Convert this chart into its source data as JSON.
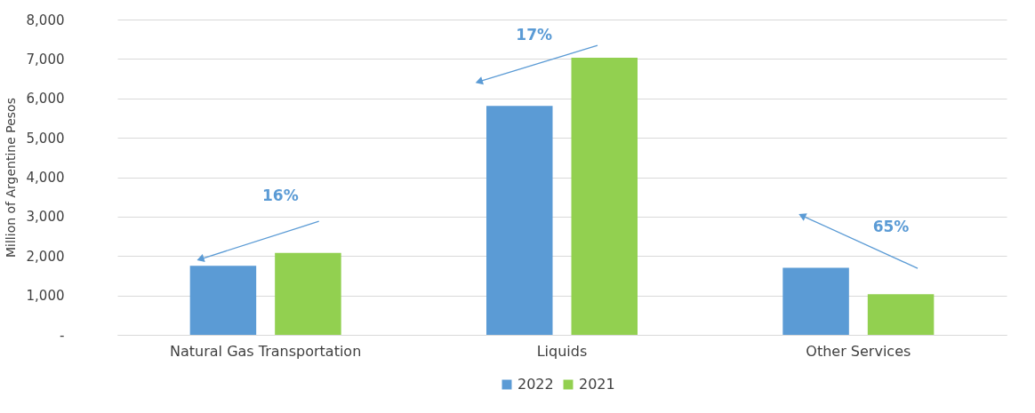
{
  "chart_data": {
    "type": "bar",
    "categories": [
      "Natural Gas Transportation",
      "Liquids",
      "Other Services"
    ],
    "series": [
      {
        "name": "2022",
        "color": "#5b9bd5",
        "values": [
          1750,
          5810,
          1700
        ]
      },
      {
        "name": "2021",
        "color": "#92d050",
        "values": [
          2080,
          7030,
          1030
        ]
      }
    ],
    "ylabel": "Million of Argentine Pesos",
    "ylim": [
      0,
      8000
    ],
    "yticks": [
      {
        "value": 0,
        "label": "-"
      },
      {
        "value": 1000,
        "label": "1,000"
      },
      {
        "value": 2000,
        "label": "2,000"
      },
      {
        "value": 3000,
        "label": "3,000"
      },
      {
        "value": 4000,
        "label": "4,000"
      },
      {
        "value": 5000,
        "label": "5,000"
      },
      {
        "value": 6000,
        "label": "6,000"
      },
      {
        "value": 7000,
        "label": "7,000"
      },
      {
        "value": 8000,
        "label": "8,000"
      }
    ],
    "grid": "y",
    "legend": "bottom",
    "annotations": [
      "16%",
      "17%",
      "65%"
    ]
  }
}
